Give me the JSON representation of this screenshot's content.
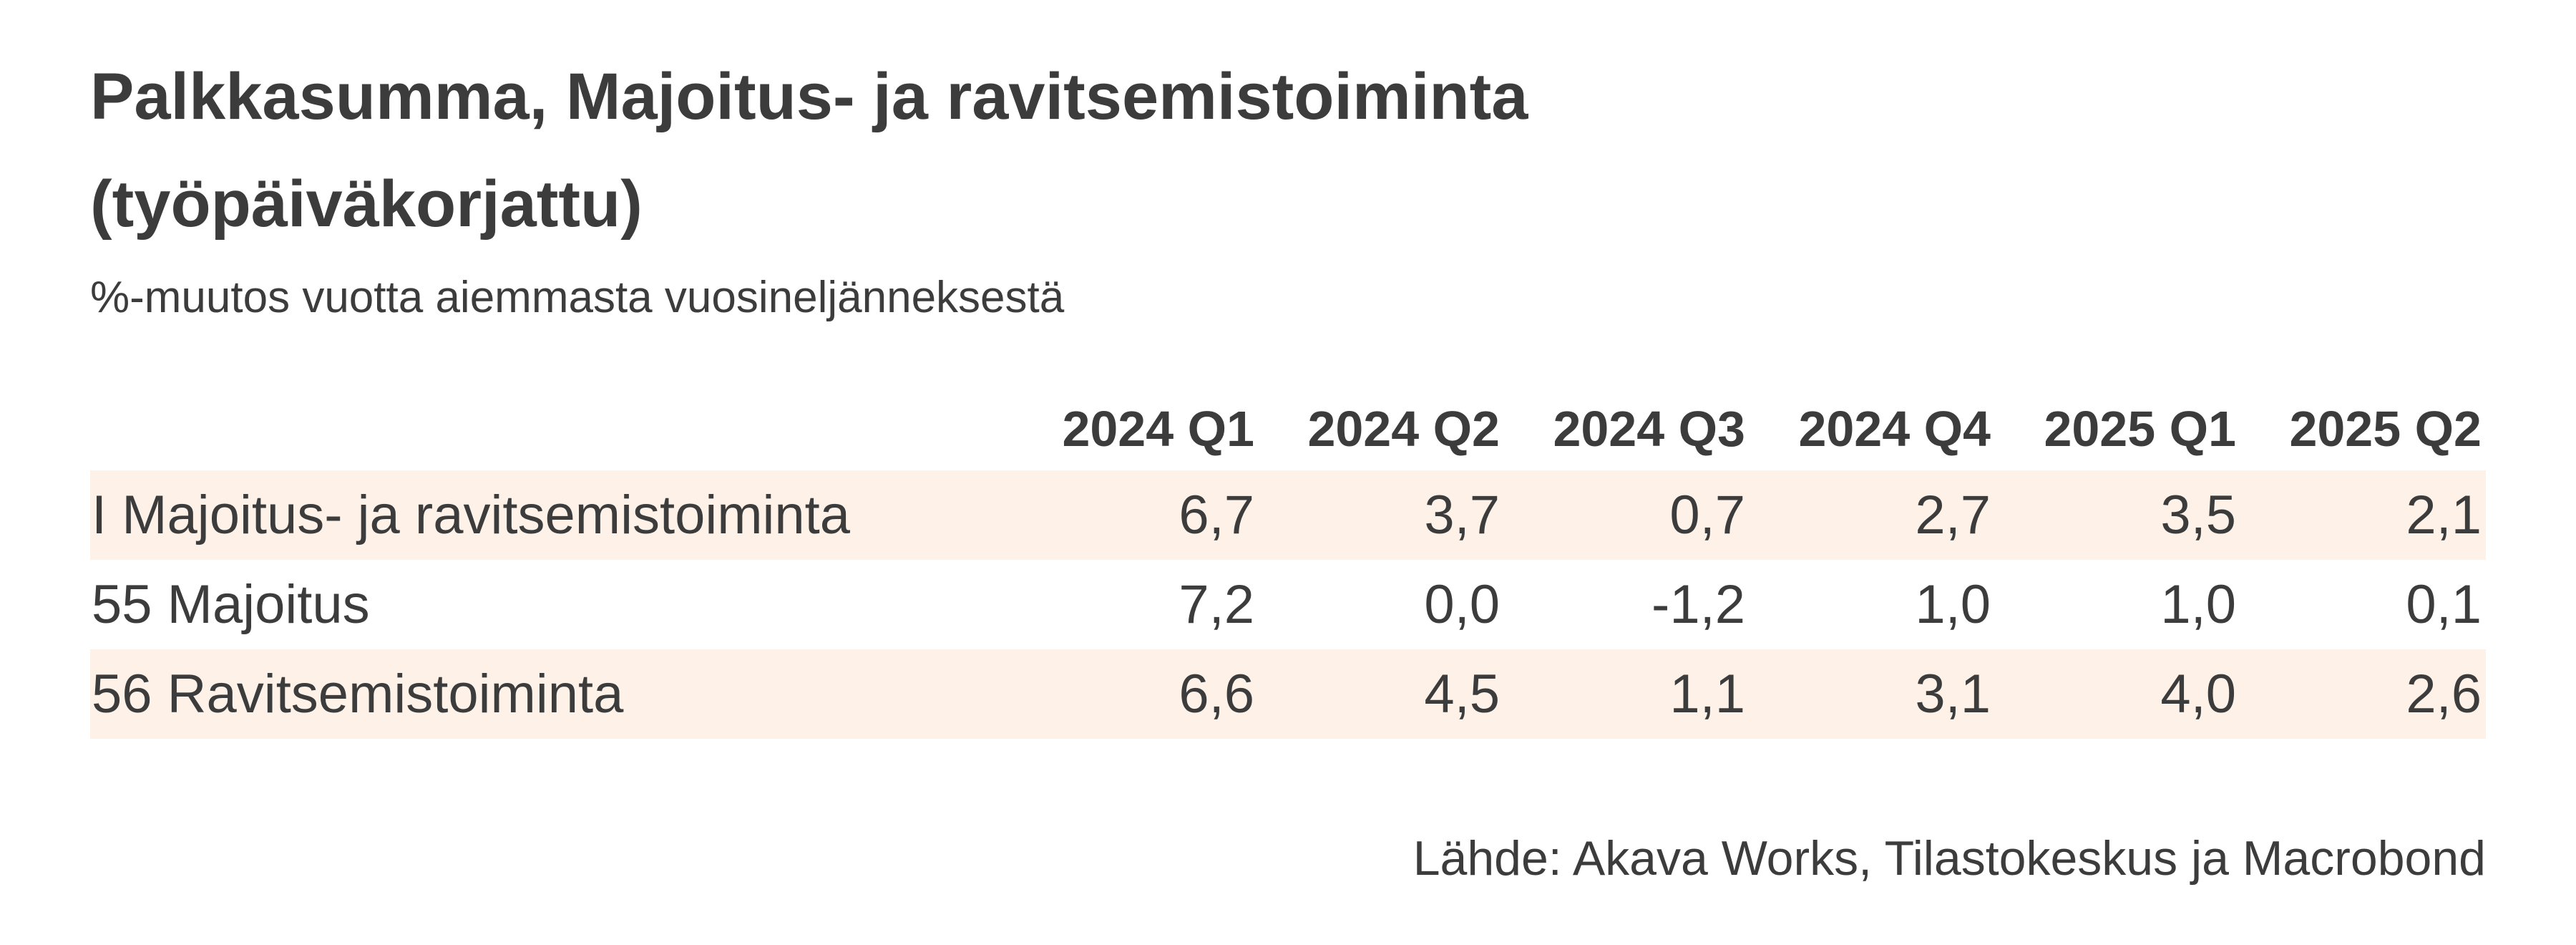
{
  "header": {
    "title": "Palkkasumma, Majoitus- ja ravitsemistoiminta (työpäiväkorjattu)",
    "subtitle": "%-muutos vuotta aiemmasta vuosineljänneksestä"
  },
  "table": {
    "columns": [
      "2024 Q1",
      "2024 Q2",
      "2024 Q3",
      "2024 Q4",
      "2025 Q1",
      "2025 Q2"
    ],
    "rows": [
      [
        "I Majoitus- ja ravitsemistoiminta",
        "6,7",
        "3,7",
        "0,7",
        "2,7",
        "3,5",
        "2,1"
      ],
      [
        "55 Majoitus",
        "7,2",
        "0,0",
        "-1,2",
        "1,0",
        "1,0",
        "0,1"
      ],
      [
        "56 Ravitsemistoiminta",
        "6,6",
        "4,5",
        "1,1",
        "3,1",
        "4,0",
        "2,6"
      ]
    ]
  },
  "footer": {
    "source": "Lähde: Akava Works, Tilastokeskus ja Macrobond"
  }
}
